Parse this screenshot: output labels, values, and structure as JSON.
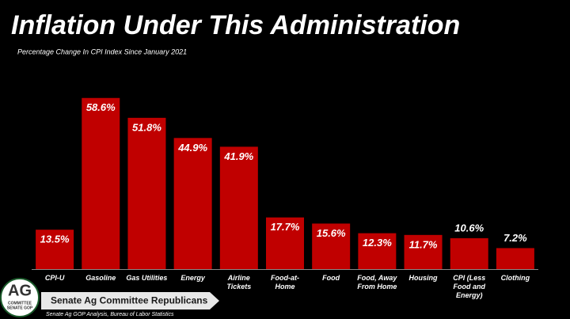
{
  "chart_data": {
    "type": "bar",
    "title": "Inflation Under This Administration",
    "subtitle": "Percentage Change In CPI Index Since January 2021",
    "categories": [
      "CPI-U",
      "Gasoline",
      "Gas Utilities",
      "Energy",
      "Airline Tickets",
      "Food-at-Home",
      "Food",
      "Food, Away From Home",
      "Housing",
      "CPI (Less Food and Energy)",
      "Clothing"
    ],
    "values": [
      13.5,
      58.6,
      51.8,
      44.9,
      41.9,
      17.7,
      15.6,
      12.3,
      11.7,
      10.6,
      7.2
    ],
    "value_labels": [
      "13.5%",
      "58.6%",
      "51.8%",
      "44.9%",
      "41.9%",
      "17.7%",
      "15.6%",
      "12.3%",
      "11.7%",
      "10.6%",
      "7.2%"
    ],
    "color": "#c00000"
  },
  "footer": {
    "logo": {
      "line1": "AG",
      "line2": "COMMITTEE",
      "line3": "SENATE GOP"
    },
    "banner": "Senate Ag Committee Republicans",
    "source": "Senate Ag GOP Analysis, Bureau of Labor Statistics"
  }
}
